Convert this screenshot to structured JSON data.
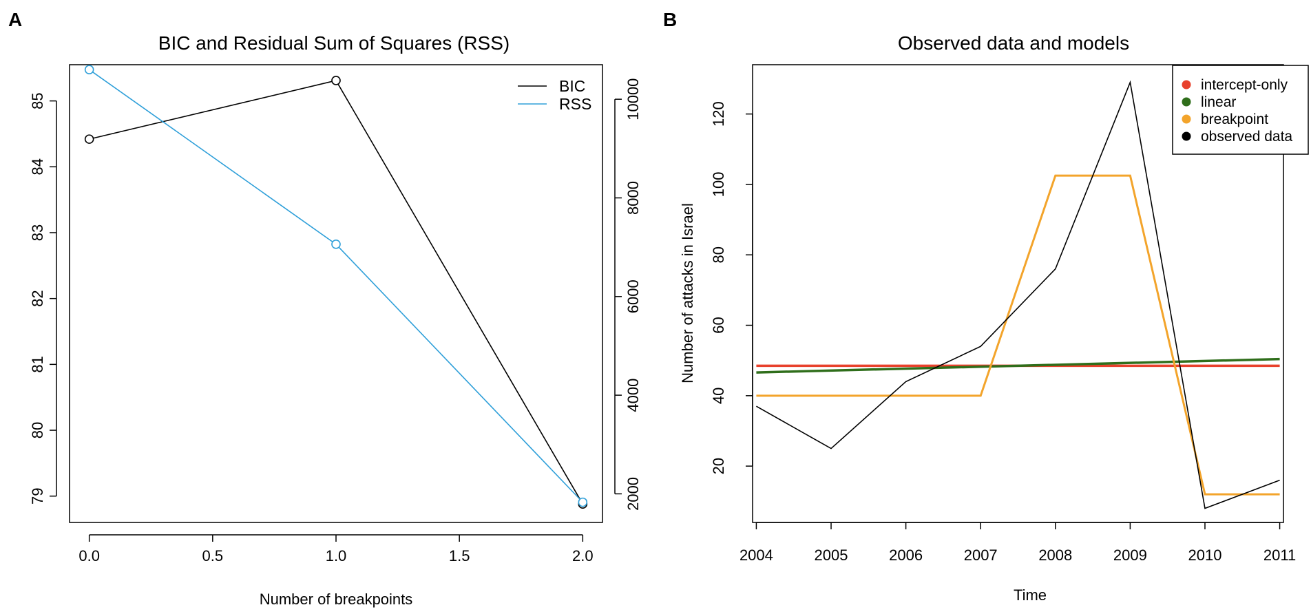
{
  "chart_data": [
    {
      "panel": "A",
      "type": "line",
      "title": "BIC and Residual Sum of Squares (RSS)",
      "xlabel": "Number of breakpoints",
      "ylabel": "",
      "y2label": "",
      "x": [
        0,
        1,
        2
      ],
      "xlim": [
        -0.08,
        2.08
      ],
      "x_ticks": [
        0,
        0.5,
        1,
        1.5,
        2
      ],
      "x_tick_labels": [
        "0.0",
        "0.5",
        "1.0",
        "1.5",
        "2.0"
      ],
      "ylim": [
        78.6,
        85.55
      ],
      "y_ticks": [
        79,
        80,
        81,
        82,
        83,
        84,
        85
      ],
      "y_tick_labels": [
        "79",
        "80",
        "81",
        "82",
        "83",
        "84",
        "85"
      ],
      "y2lim": [
        1420,
        10700
      ],
      "y2_ticks": [
        2000,
        4000,
        6000,
        8000,
        10000
      ],
      "y2_tick_labels": [
        "2000",
        "4000",
        "6000",
        "8000",
        "10000"
      ],
      "legend_position": "top-right",
      "series": [
        {
          "name": "BIC",
          "axis": "left",
          "color": "#000000",
          "values": [
            84.42,
            85.31,
            78.88
          ]
        },
        {
          "name": "RSS",
          "axis": "right",
          "color": "#2e9fd9",
          "values": [
            10600,
            7060,
            1830
          ]
        }
      ]
    },
    {
      "panel": "B",
      "type": "line",
      "title": "Observed data and models",
      "xlabel": "Time",
      "ylabel": "Number of attacks in Israel",
      "x": [
        2004,
        2005,
        2006,
        2007,
        2008,
        2009,
        2010,
        2011
      ],
      "xlim": [
        2003.95,
        2011.05
      ],
      "x_ticks": [
        2004,
        2005,
        2006,
        2007,
        2008,
        2009,
        2010,
        2011
      ],
      "x_tick_labels": [
        "2004",
        "2005",
        "2006",
        "2007",
        "2008",
        "2009",
        "2010",
        "2011"
      ],
      "ylim": [
        4,
        134
      ],
      "y_ticks": [
        20,
        40,
        60,
        80,
        100,
        120
      ],
      "y_tick_labels": [
        "20",
        "40",
        "60",
        "80",
        "100",
        "120"
      ],
      "legend_position": "top-right",
      "series": [
        {
          "name": "intercept-only",
          "color": "#e8412c",
          "width": 3.5,
          "x": [
            2004,
            2011
          ],
          "values": [
            48.5,
            48.5
          ]
        },
        {
          "name": "linear",
          "color": "#2f6e1b",
          "width": 3.5,
          "x": [
            2004,
            2011
          ],
          "values": [
            46.6,
            50.4
          ]
        },
        {
          "name": "breakpoint",
          "color": "#f3a42b",
          "width": 3,
          "x": [
            2004,
            2007,
            2008,
            2009,
            2010,
            2011
          ],
          "values": [
            40,
            40,
            102.5,
            102.5,
            12,
            12
          ]
        },
        {
          "name": "observed data",
          "color": "#000000",
          "width": 1.6,
          "x": [
            2004,
            2005,
            2006,
            2007,
            2008,
            2009,
            2010,
            2011
          ],
          "values": [
            37,
            25,
            44,
            54,
            76,
            129,
            8,
            16
          ]
        }
      ]
    }
  ]
}
